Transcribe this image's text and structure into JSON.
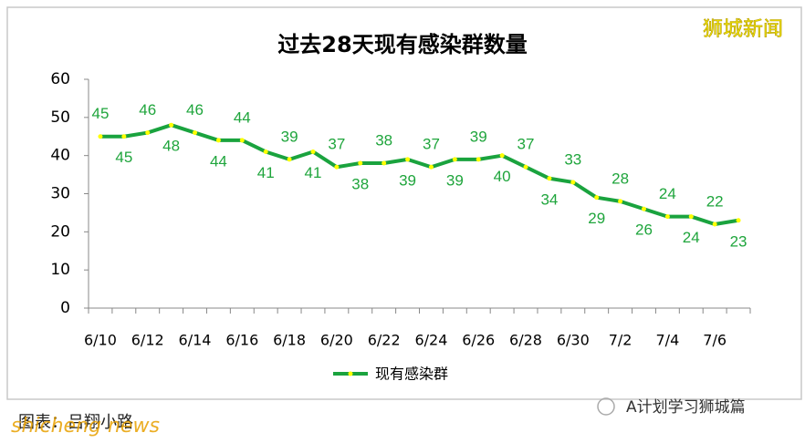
{
  "chart_data": {
    "type": "line",
    "title": "过去28天现有感染群数量",
    "categories": [
      "6/10",
      null,
      "6/12",
      null,
      "6/14",
      null,
      "6/16",
      null,
      "6/18",
      null,
      "6/20",
      null,
      "6/22",
      null,
      "6/24",
      null,
      "6/26",
      null,
      "6/28",
      null,
      "6/30",
      null,
      "7/2",
      null,
      "7/4",
      null,
      "7/6",
      null
    ],
    "series": [
      {
        "name": "现有感染群",
        "color": "#1aa33e",
        "marker_color": "#ffff00",
        "values": [
          45,
          45,
          46,
          48,
          46,
          44,
          44,
          41,
          39,
          41,
          37,
          38,
          38,
          39,
          37,
          39,
          39,
          40,
          37,
          34,
          33,
          29,
          28,
          26,
          24,
          24,
          22,
          23
        ]
      }
    ],
    "ylim": [
      0,
      60
    ],
    "yticks": [
      0,
      10,
      20,
      30,
      40,
      50,
      60
    ],
    "grid": false,
    "legend": "bottom"
  },
  "watermarks": {
    "top_right": "狮城新闻",
    "bottom_left": "图表：吕翔小路",
    "bottom_left_overlay": "shicheng news",
    "bottom_right": "A计划学习狮城篇"
  }
}
